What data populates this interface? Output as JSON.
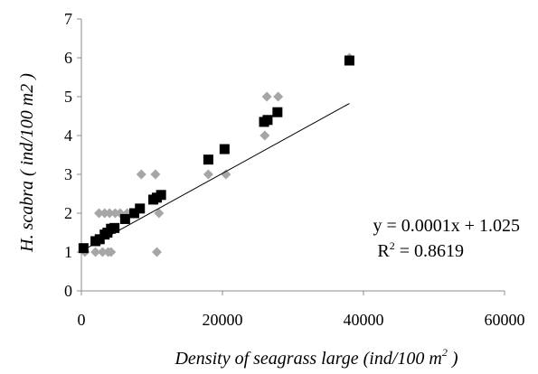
{
  "chart_data": {
    "type": "scatter",
    "title": "",
    "xlabel_parts": [
      "Density of seagrass large (ind/100 m",
      "2",
      " )"
    ],
    "ylabel": "H. scabra ( ind/100 m2 )",
    "xlim": [
      0,
      60000
    ],
    "ylim": [
      0,
      7
    ],
    "x_ticks": [
      "0",
      "20000",
      "40000",
      "60000"
    ],
    "y_ticks": [
      "0",
      "1",
      "2",
      "3",
      "4",
      "5",
      "6",
      "7"
    ],
    "grid": false,
    "series": [
      {
        "marker": "diamond",
        "color": "#a6a6a6",
        "points": [
          {
            "x": 500,
            "y": 1
          },
          {
            "x": 2000,
            "y": 1
          },
          {
            "x": 2500,
            "y": 2
          },
          {
            "x": 3000,
            "y": 1
          },
          {
            "x": 3300,
            "y": 2
          },
          {
            "x": 3800,
            "y": 1
          },
          {
            "x": 4000,
            "y": 2
          },
          {
            "x": 4200,
            "y": 1
          },
          {
            "x": 4800,
            "y": 2
          },
          {
            "x": 5500,
            "y": 2
          },
          {
            "x": 6500,
            "y": 2
          },
          {
            "x": 8500,
            "y": 3
          },
          {
            "x": 10500,
            "y": 3
          },
          {
            "x": 10700,
            "y": 1
          },
          {
            "x": 11000,
            "y": 2
          },
          {
            "x": 18000,
            "y": 3
          },
          {
            "x": 20500,
            "y": 3
          },
          {
            "x": 26000,
            "y": 4
          },
          {
            "x": 26300,
            "y": 5
          },
          {
            "x": 27900,
            "y": 5
          },
          {
            "x": 38000,
            "y": 6
          }
        ]
      },
      {
        "marker": "square",
        "color": "#000000",
        "points": [
          {
            "x": 300,
            "y": 1.1
          },
          {
            "x": 2000,
            "y": 1.28
          },
          {
            "x": 2600,
            "y": 1.33
          },
          {
            "x": 3300,
            "y": 1.45
          },
          {
            "x": 3700,
            "y": 1.5
          },
          {
            "x": 4200,
            "y": 1.6
          },
          {
            "x": 4700,
            "y": 1.62
          },
          {
            "x": 6200,
            "y": 1.85
          },
          {
            "x": 7500,
            "y": 2.0
          },
          {
            "x": 8300,
            "y": 2.12
          },
          {
            "x": 10200,
            "y": 2.35
          },
          {
            "x": 10700,
            "y": 2.4
          },
          {
            "x": 11300,
            "y": 2.47
          },
          {
            "x": 18000,
            "y": 3.38
          },
          {
            "x": 20300,
            "y": 3.65
          },
          {
            "x": 25900,
            "y": 4.35
          },
          {
            "x": 26400,
            "y": 4.4
          },
          {
            "x": 27800,
            "y": 4.6
          },
          {
            "x": 38000,
            "y": 5.93
          }
        ]
      }
    ],
    "trendline": {
      "x_range": [
        0,
        38000
      ],
      "slope": 0.0001,
      "intercept": 1.025,
      "color": "#000000"
    },
    "annotations": {
      "equation": "y = 0.0001x + 1.025",
      "r2_label": "R",
      "r2_sup": "2",
      "r2_value": " = 0.8619"
    }
  }
}
